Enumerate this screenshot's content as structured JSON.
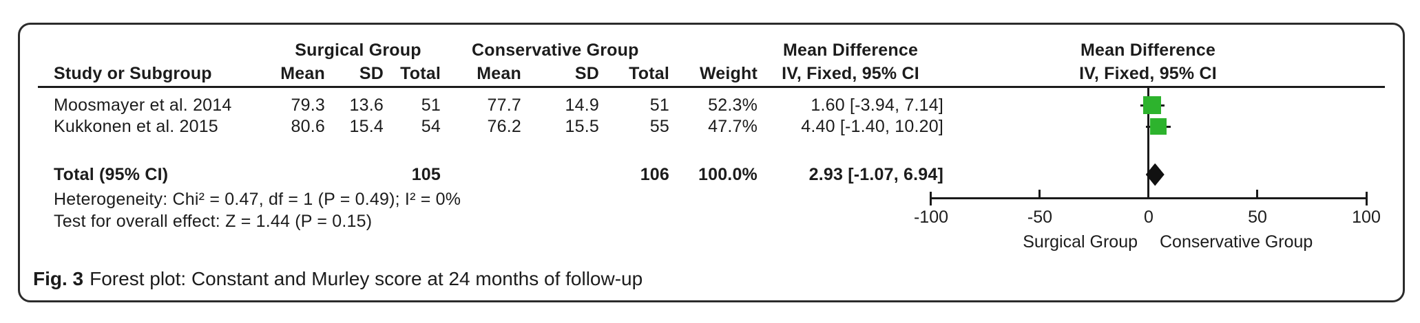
{
  "figure": {
    "caption_label": "Fig. 3",
    "caption_text": "Forest plot: Constant and Murley score at 24 months of follow-up"
  },
  "table": {
    "group_headers": {
      "surgical": "Surgical Group",
      "conservative": "Conservative Group",
      "mean_difference": "Mean Difference",
      "mean_difference_plot": "Mean Difference"
    },
    "columns": {
      "study": "Study or Subgroup",
      "mean_s": "Mean",
      "sd_s": "SD",
      "total_s": "Total",
      "mean_c": "Mean",
      "sd_c": "SD",
      "total_c": "Total",
      "weight": "Weight",
      "ci": "IV, Fixed, 95% CI",
      "ci_plot": "IV, Fixed, 95% CI"
    },
    "rows": [
      {
        "study": "Moosmayer et al. 2014",
        "mean_s": "79.3",
        "sd_s": "13.6",
        "total_s": "51",
        "mean_c": "77.7",
        "sd_c": "14.9",
        "total_c": "51",
        "weight": "52.3%",
        "ci": "1.60 [-3.94, 7.14]"
      },
      {
        "study": "Kukkonen et al. 2015",
        "mean_s": "80.6",
        "sd_s": "15.4",
        "total_s": "54",
        "mean_c": "76.2",
        "sd_c": "15.5",
        "total_c": "55",
        "weight": "47.7%",
        "ci": "4.40 [-1.40, 10.20]"
      }
    ],
    "total_row": {
      "label": "Total (95% CI)",
      "total_s": "105",
      "total_c": "106",
      "weight": "100.0%",
      "ci": "2.93 [-1.07, 6.94]"
    },
    "heterogeneity": "Heterogeneity: Chi² = 0.47, df = 1 (P = 0.49); I² = 0%",
    "overall_effect": "Test for overall effect: Z = 1.44 (P = 0.15)"
  },
  "axis": {
    "tick_labels": [
      "-100",
      "-50",
      "0",
      "50",
      "100"
    ],
    "left_label": "Surgical Group",
    "right_label": "Conservative Group"
  },
  "chart_data": {
    "type": "forest",
    "effect_measure": "Mean Difference",
    "model": "IV, Fixed, 95% CI",
    "studies": [
      {
        "name": "Moosmayer et al. 2014",
        "estimate": 1.6,
        "ci_low": -3.94,
        "ci_high": 7.14,
        "weight_pct": 52.3
      },
      {
        "name": "Kukkonen et al. 2015",
        "estimate": 4.4,
        "ci_low": -1.4,
        "ci_high": 10.2,
        "weight_pct": 47.7
      }
    ],
    "pooled": {
      "estimate": 2.93,
      "ci_low": -1.07,
      "ci_high": 6.94,
      "weight_pct": 100.0
    },
    "xlim": [
      -100,
      100
    ],
    "ticks": [
      -100,
      -50,
      0,
      50,
      100
    ],
    "favors_left": "Surgical Group",
    "favors_right": "Conservative Group"
  },
  "colors": {
    "marker_green": "#2db32d",
    "line_black": "#1a1a1a"
  }
}
